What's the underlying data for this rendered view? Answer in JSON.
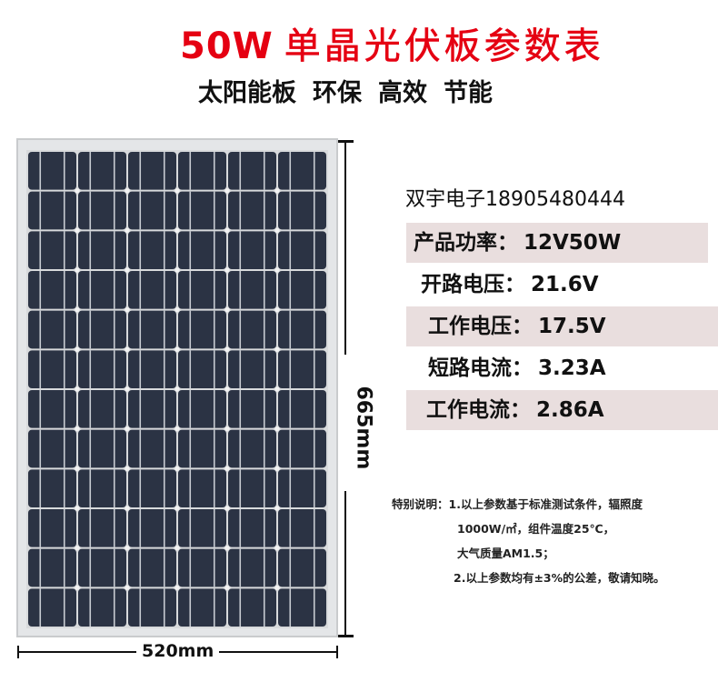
{
  "title": {
    "power": "50W",
    "text": "单晶光伏板参数表",
    "color": "#e50012"
  },
  "subtitle": [
    "太阳能板",
    "环保",
    "高效",
    "节能"
  ],
  "dimensions": {
    "height": "665mm",
    "width": "520mm"
  },
  "company": "双宇电子18905480444",
  "specs": [
    {
      "label": "产品功率：",
      "value": "12V50W"
    },
    {
      "label": "开路电压：",
      "value": "21.6V"
    },
    {
      "label": "工作电压：",
      "value": "17.5V"
    },
    {
      "label": "短路电流：",
      "value": "3.23A"
    },
    {
      "label": "工作电流：",
      "value": "2.86A"
    }
  ],
  "notes": {
    "heading": "特别说明：",
    "lines": [
      "1.以上参数基于标准测试条件，辐照度",
      "1000W/㎡，组件温度25℃，",
      "大气质量AM1.5；",
      "2.以上参数均有±3%的公差，敬请知晓。"
    ]
  },
  "panel": {
    "columns": 6,
    "rows": 12,
    "cell_color": "#2b3344",
    "frame_color": "#e4e6e8"
  }
}
